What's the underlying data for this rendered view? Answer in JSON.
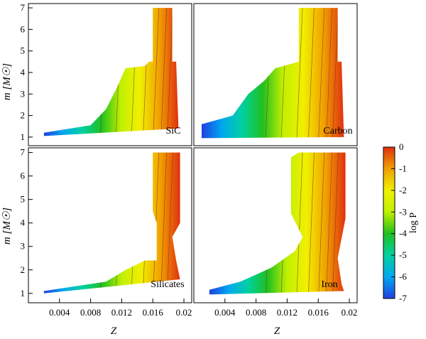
{
  "chart_data": [
    {
      "type": "heatmap",
      "panel": "SiC",
      "xlabel": "",
      "ylabel": "m [M☉]",
      "xlim": [
        0.0,
        0.021
      ],
      "ylim": [
        0.6,
        7.2
      ],
      "x_ticks": [],
      "y_ticks": [
        "1",
        "2",
        "3",
        "4",
        "5",
        "6",
        "7"
      ],
      "y_tick_values": [
        1,
        2,
        3,
        4,
        5,
        6,
        7
      ],
      "region_description": "colored where SiC grains form; P increases toward high Z",
      "boundary": [
        [
          0.016,
          7.0
        ],
        [
          0.0185,
          7.0
        ],
        [
          0.0185,
          4.5
        ],
        [
          0.019,
          4.5
        ],
        [
          0.0193,
          1.4
        ],
        [
          0.002,
          1.05
        ],
        [
          0.002,
          1.2
        ],
        [
          0.008,
          1.55
        ],
        [
          0.01,
          2.3
        ],
        [
          0.0115,
          3.4
        ],
        [
          0.0125,
          4.2
        ],
        [
          0.015,
          4.3
        ],
        [
          0.0155,
          4.5
        ],
        [
          0.016,
          4.5
        ]
      ]
    },
    {
      "type": "heatmap",
      "panel": "Carbon",
      "xlabel": "",
      "ylabel": "",
      "xlim": [
        0.0,
        0.021
      ],
      "ylim": [
        0.6,
        7.2
      ],
      "x_ticks": [],
      "y_ticks": [],
      "region_description": "colored where carbon grains form",
      "boundary": [
        [
          0.0135,
          7.0
        ],
        [
          0.0185,
          7.0
        ],
        [
          0.0185,
          4.5
        ],
        [
          0.019,
          4.5
        ],
        [
          0.0193,
          1.0
        ],
        [
          0.001,
          0.95
        ],
        [
          0.001,
          1.6
        ],
        [
          0.005,
          2.0
        ],
        [
          0.007,
          3.0
        ],
        [
          0.009,
          3.6
        ],
        [
          0.0105,
          4.2
        ],
        [
          0.0135,
          4.5
        ]
      ]
    },
    {
      "type": "heatmap",
      "panel": "Silicates",
      "xlabel": "Z",
      "ylabel": "m [M☉]",
      "xlim": [
        0.0,
        0.021
      ],
      "ylim": [
        0.6,
        7.2
      ],
      "x_ticks": [
        "0.004",
        "0.008",
        "0.012",
        "0.016",
        "0.02"
      ],
      "x_tick_values": [
        0.004,
        0.008,
        0.012,
        0.016,
        0.02
      ],
      "y_ticks": [
        "1",
        "2",
        "3",
        "4",
        "5",
        "6",
        "7"
      ],
      "y_tick_values": [
        1,
        2,
        3,
        4,
        5,
        6,
        7
      ],
      "region_description": "colored where silicate grains form",
      "boundary": [
        [
          0.016,
          7.0
        ],
        [
          0.0195,
          7.0
        ],
        [
          0.0195,
          4.0
        ],
        [
          0.0185,
          3.4
        ],
        [
          0.019,
          2.4
        ],
        [
          0.0195,
          1.6
        ],
        [
          0.002,
          1.0
        ],
        [
          0.002,
          1.1
        ],
        [
          0.01,
          1.5
        ],
        [
          0.0125,
          2.0
        ],
        [
          0.015,
          2.4
        ],
        [
          0.0165,
          2.4
        ],
        [
          0.0165,
          4.0
        ],
        [
          0.016,
          4.5
        ]
      ]
    },
    {
      "type": "heatmap",
      "panel": "Iron",
      "xlabel": "Z",
      "ylabel": "",
      "xlim": [
        0.0,
        0.021
      ],
      "ylim": [
        0.6,
        7.2
      ],
      "x_ticks": [
        "0.004",
        "0.008",
        "0.012",
        "0.016",
        "0.02"
      ],
      "x_tick_values": [
        0.004,
        0.008,
        0.012,
        0.016,
        0.02
      ],
      "y_ticks": [],
      "region_description": "colored where iron grains form",
      "boundary": [
        [
          0.0135,
          7.0
        ],
        [
          0.0195,
          7.0
        ],
        [
          0.0195,
          4.2
        ],
        [
          0.0185,
          2.5
        ],
        [
          0.019,
          1.4
        ],
        [
          0.0193,
          1.1
        ],
        [
          0.002,
          0.95
        ],
        [
          0.002,
          1.15
        ],
        [
          0.006,
          1.5
        ],
        [
          0.01,
          2.1
        ],
        [
          0.013,
          2.8
        ],
        [
          0.014,
          3.4
        ],
        [
          0.0125,
          4.4
        ],
        [
          0.0125,
          6.8
        ],
        [
          0.0135,
          7.0
        ]
      ]
    }
  ],
  "colorbar": {
    "label": "log P",
    "ticks": [
      "0",
      "-1",
      "-2",
      "-3",
      "-4",
      "-5",
      "-6",
      "-7"
    ],
    "tick_values": [
      0,
      -1,
      -2,
      -3,
      -4,
      -5,
      -6,
      -7
    ],
    "range": [
      -7,
      0
    ],
    "colormap": [
      "#2040e0",
      "#00a8f0",
      "#00d0a0",
      "#20c020",
      "#c0f000",
      "#f0f000",
      "#f0a000",
      "#e03010"
    ]
  }
}
